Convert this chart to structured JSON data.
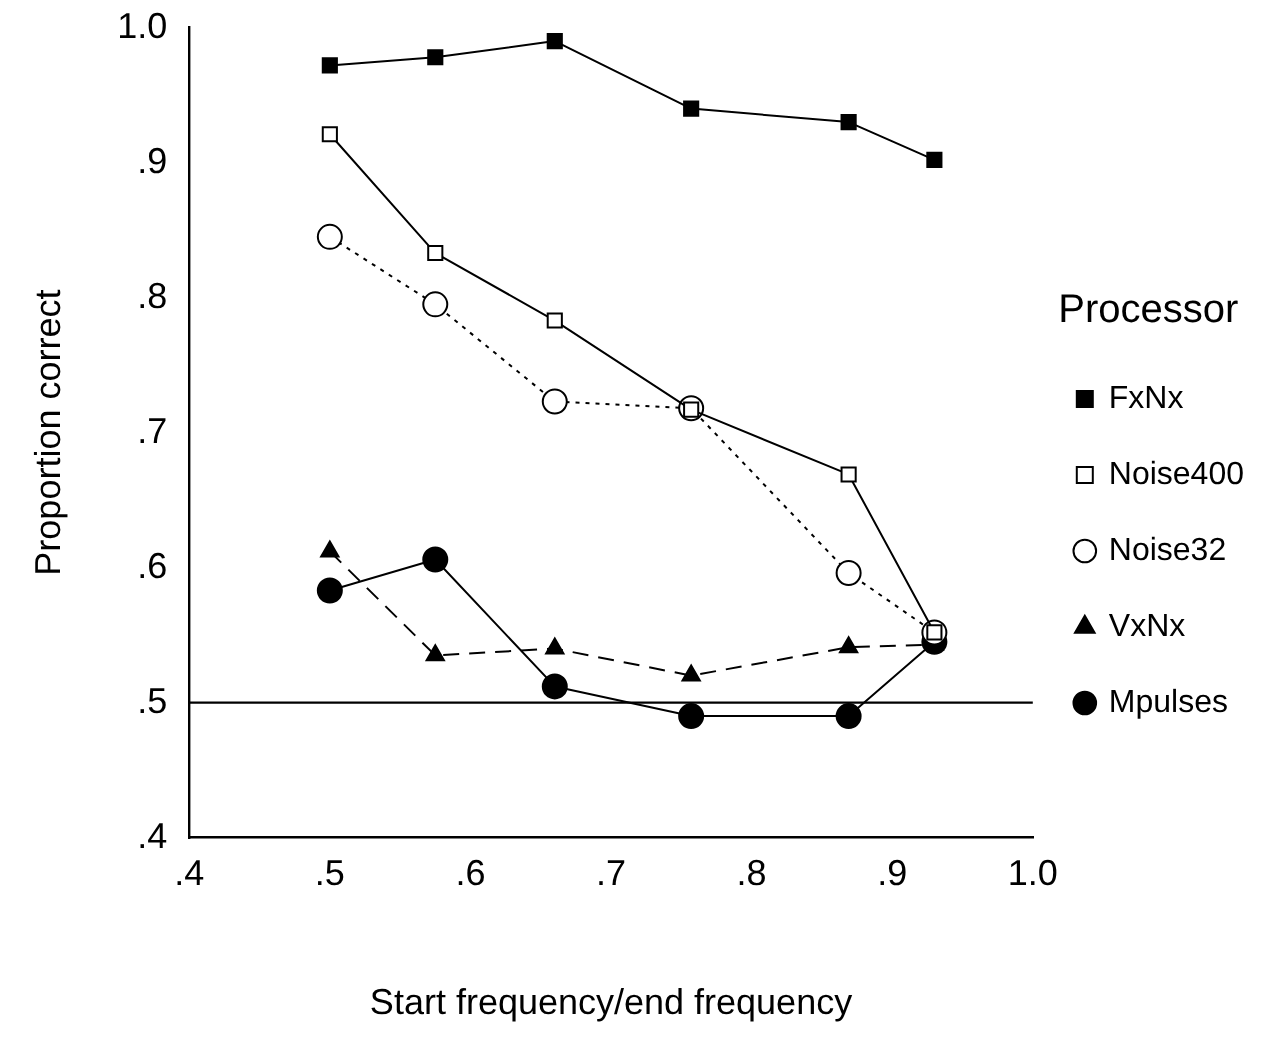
{
  "chart_data": {
    "type": "line",
    "xlabel": "Start frequency/end frequency",
    "ylabel": "Proportion correct",
    "legend_title": "Processor",
    "legend": "right",
    "grid": false,
    "x": [
      0.5,
      0.575,
      0.66,
      0.757,
      0.869,
      0.93
    ],
    "xlim": [
      0.4,
      1.0
    ],
    "xticks": [
      {
        "value": 0.4,
        "label": ".4"
      },
      {
        "value": 0.5,
        "label": ".5"
      },
      {
        "value": 0.6,
        "label": ".6"
      },
      {
        "value": 0.7,
        "label": ".7"
      },
      {
        "value": 0.8,
        "label": ".8"
      },
      {
        "value": 0.9,
        "label": ".9"
      },
      {
        "value": 1.0,
        "label": "1.0"
      }
    ],
    "ylim": [
      0.4,
      1.0
    ],
    "yticks": [
      {
        "value": 0.4,
        "label": ".4"
      },
      {
        "value": 0.5,
        "label": ".5"
      },
      {
        "value": 0.6,
        "label": ".6"
      },
      {
        "value": 0.7,
        "label": ".7"
      },
      {
        "value": 0.8,
        "label": ".8"
      },
      {
        "value": 0.9,
        "label": ".9"
      },
      {
        "value": 1.0,
        "label": "1.0"
      }
    ],
    "ref_lines": [
      {
        "axis": "y",
        "value": 0.5,
        "color": "#000000",
        "line_style": "solid"
      }
    ],
    "series": [
      {
        "name": "FxNx",
        "color": "#000000",
        "marker": "square",
        "line_style": "solid",
        "values": [
          0.972,
          0.978,
          0.99,
          0.94,
          0.93,
          0.902
        ]
      },
      {
        "name": "Noise400",
        "color": "#000000",
        "marker": "square",
        "line_style": "solid",
        "values": [
          0.921,
          0.833,
          0.783,
          0.717,
          0.669,
          0.552
        ]
      },
      {
        "name": "Noise32",
        "color": "#000000",
        "marker": "circle",
        "line_style": "dotted",
        "values": [
          0.845,
          0.795,
          0.723,
          0.718,
          0.596,
          0.552
        ]
      },
      {
        "name": "VxNx",
        "color": "#000000",
        "marker": "triangle",
        "line_style": "dashed",
        "values": [
          0.612,
          0.535,
          0.54,
          0.52,
          0.541,
          0.543
        ]
      },
      {
        "name": "Mpulses",
        "color": "#000000",
        "marker": "circle",
        "line_style": "solid",
        "values": [
          0.583,
          0.606,
          0.512,
          0.49,
          0.49,
          0.545
        ]
      }
    ]
  }
}
